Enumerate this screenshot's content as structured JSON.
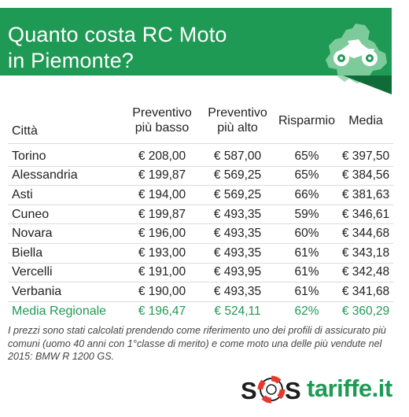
{
  "header": {
    "title_line1": "Quanto costa RC Moto",
    "title_line2": "in Piemonte?",
    "icon": "motorcycle-map-icon"
  },
  "table": {
    "headers": {
      "city": "Città",
      "min_l1": "Preventivo",
      "min_l2": "più basso",
      "max_l1": "Preventivo",
      "max_l2": "più alto",
      "saving": "Risparmio",
      "avg": "Media"
    },
    "rows": [
      {
        "city": "Torino",
        "min": "€ 208,00",
        "max": "€ 587,00",
        "saving": "65%",
        "avg": "€ 397,50"
      },
      {
        "city": "Alessandria",
        "min": "€ 199,87",
        "max": "€ 569,25",
        "saving": "65%",
        "avg": "€ 384,56"
      },
      {
        "city": "Asti",
        "min": "€ 194,00",
        "max": "€ 569,25",
        "saving": "66%",
        "avg": "€ 381,63"
      },
      {
        "city": "Cuneo",
        "min": "€ 199,87",
        "max": "€ 493,35",
        "saving": "59%",
        "avg": "€ 346,61"
      },
      {
        "city": "Novara",
        "min": "€ 196,00",
        "max": "€ 493,35",
        "saving": "60%",
        "avg": "€ 344,68"
      },
      {
        "city": "Biella",
        "min": "€ 193,00",
        "max": "€ 493,35",
        "saving": "61%",
        "avg": "€ 343,18"
      },
      {
        "city": "Vercelli",
        "min": "€ 191,00",
        "max": "€ 493,95",
        "saving": "61%",
        "avg": "€ 342,48"
      },
      {
        "city": "Verbania",
        "min": "€ 190,00",
        "max": "€ 493,35",
        "saving": "61%",
        "avg": "€ 341,68"
      }
    ],
    "regional": {
      "city": "Media Regionale",
      "min": "€ 196,47",
      "max": "€ 524,11",
      "saving": "62%",
      "avg": "€ 360,29"
    }
  },
  "note": "I prezzi sono  stati calcolati prendendo come riferimento uno dei profili di assicurato più comuni (uomo 40 anni con 1°classe di merito) e come moto una delle più vendute nel 2015: BMW R 1200 GS.",
  "logo": {
    "text": "SOStariffe.it",
    "icon": "sos-lifebuoy-icon"
  },
  "colors": {
    "brand_green": "#1f9a55",
    "fold_green": "#0f6b38"
  }
}
